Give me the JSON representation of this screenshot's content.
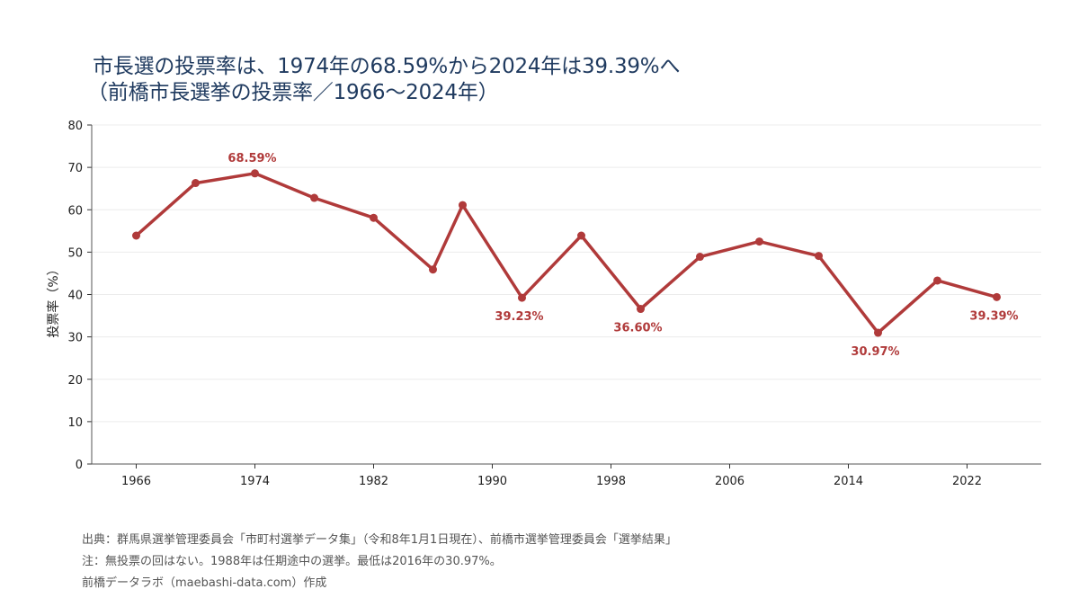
{
  "title_line1": "市長選の投票率は、1974年の68.59%から2024年は39.39%へ",
  "title_line2": "（前橋市長選挙の投票率／1966〜2024年）",
  "source": "出典：群馬県選挙管理委員会「市町村選挙データ集」（令和8年1月1日現在）、前橋市選挙管理委員会「選挙結果」",
  "note": "注：無投票の回はない。1988年は任期途中の選挙。最低は2016年の30.97%。",
  "credit": "前橋データラボ（maebashi-data.com）作成",
  "chart_data": {
    "type": "line",
    "title": "市長選の投票率は、1974年の68.59%から2024年は39.39%へ（前橋市長選挙の投票率／1966〜2024年）",
    "xlabel": "",
    "ylabel": "投票率（%）",
    "xlim": [
      1963,
      2027
    ],
    "ylim": [
      0,
      80
    ],
    "xticks": [
      1966,
      1974,
      1982,
      1990,
      1998,
      2006,
      2014,
      2022
    ],
    "yticks": [
      0,
      10,
      20,
      30,
      40,
      50,
      60,
      70,
      80
    ],
    "grid": "horizontal",
    "legend": "none",
    "series": [
      {
        "color": "#b03a3a",
        "x": [
          1966,
          1970,
          1974,
          1978,
          1982,
          1986,
          1988,
          1992,
          1996,
          2000,
          2004,
          2008,
          2012,
          2016,
          2020,
          2024
        ],
        "y": [
          53.9,
          66.3,
          68.59,
          62.8,
          58.1,
          45.9,
          61.1,
          39.23,
          53.9,
          36.6,
          48.9,
          52.5,
          49.1,
          30.97,
          43.3,
          39.39
        ]
      }
    ],
    "annotations": [
      {
        "x": 1974,
        "y": 68.59,
        "text": "68.59%",
        "position": "above"
      },
      {
        "x": 1992,
        "y": 39.23,
        "text": "39.23%",
        "position": "below"
      },
      {
        "x": 2000,
        "y": 36.6,
        "text": "36.60%",
        "position": "below"
      },
      {
        "x": 2016,
        "y": 30.97,
        "text": "30.97%",
        "position": "below"
      },
      {
        "x": 2024,
        "y": 39.39,
        "text": "39.39%",
        "position": "below"
      }
    ]
  }
}
